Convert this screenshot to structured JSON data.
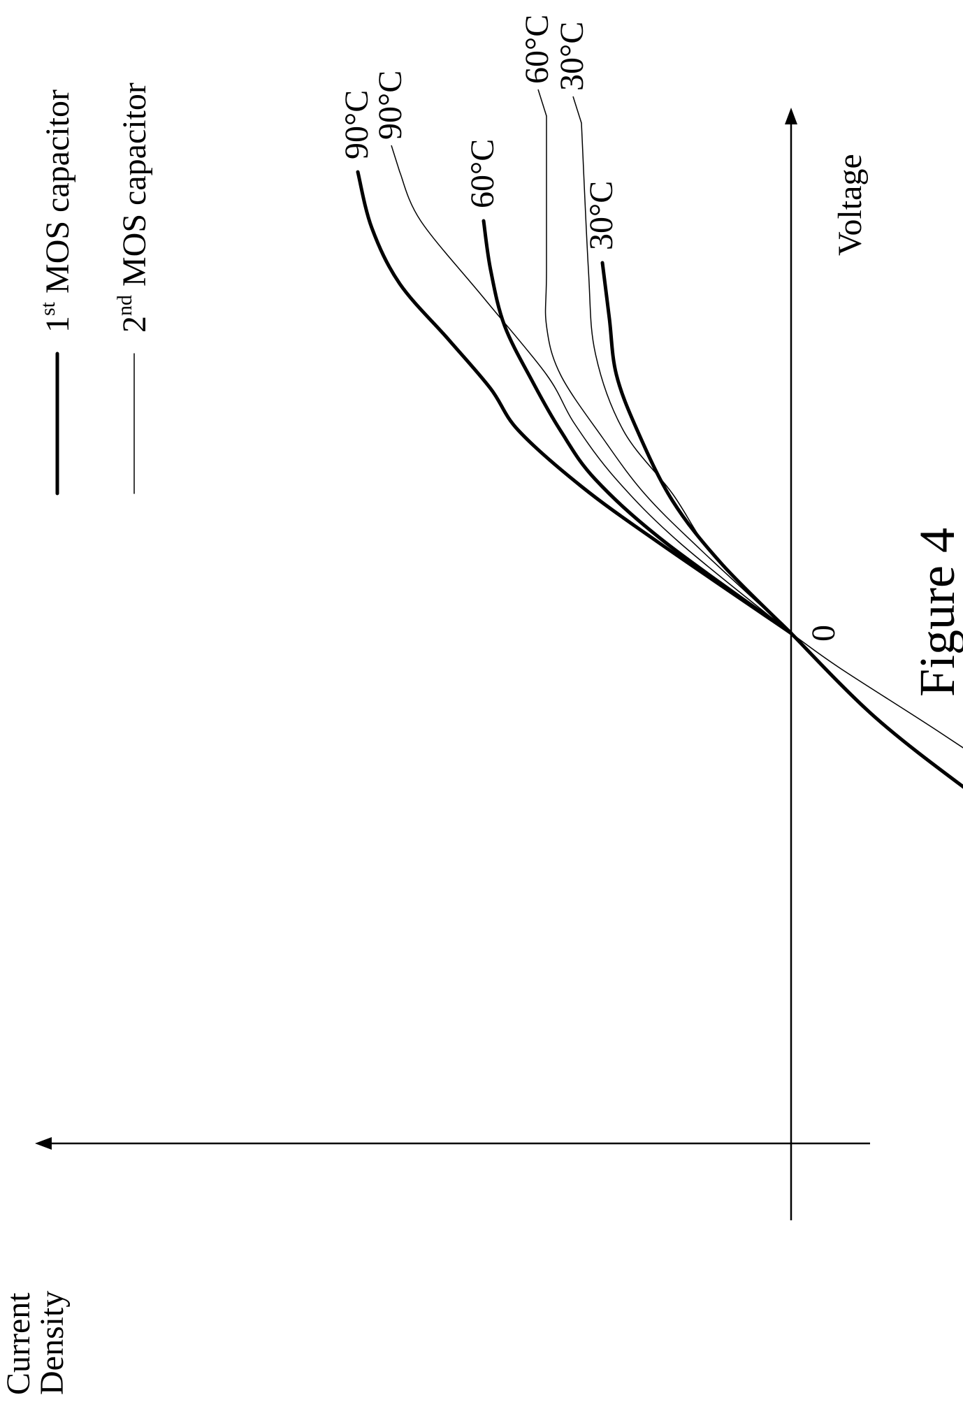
{
  "chart_data": {
    "type": "line",
    "title": "",
    "xlabel": "Voltage",
    "ylabel": "Current Density",
    "origin_tick": "0",
    "caption": "Figure 4",
    "legend": {
      "placement": "top",
      "entries": [
        {
          "base": "1",
          "sup": "st",
          "rest": " MOS capacitor",
          "style": "thick"
        },
        {
          "base": "2",
          "sup": "nd",
          "rest": " MOS capacitor",
          "style": "thin"
        }
      ]
    },
    "series": [
      {
        "name": "1st MOS capacitor",
        "temperature": "90°C",
        "side": "positive",
        "points": [
          [
            0,
            0
          ],
          [
            0.13,
            0.19
          ],
          [
            0.21,
            0.3
          ],
          [
            0.29,
            0.39
          ],
          [
            0.35,
            0.43
          ],
          [
            0.42,
            0.49
          ],
          [
            0.5,
            0.56
          ],
          [
            0.58,
            0.6
          ],
          [
            0.66,
            0.62
          ]
        ]
      },
      {
        "name": "1st MOS capacitor",
        "temperature": "60°C",
        "side": "positive",
        "points": [
          [
            0,
            0
          ],
          [
            0.13,
            0.18
          ],
          [
            0.22,
            0.28
          ],
          [
            0.29,
            0.33
          ],
          [
            0.36,
            0.37
          ],
          [
            0.44,
            0.41
          ],
          [
            0.52,
            0.43
          ],
          [
            0.59,
            0.44
          ]
        ]
      },
      {
        "name": "1st MOS capacitor",
        "temperature": "30°C",
        "side": "positive",
        "points": [
          [
            0,
            0
          ],
          [
            0.1,
            0.1
          ],
          [
            0.19,
            0.17
          ],
          [
            0.29,
            0.22
          ],
          [
            0.37,
            0.25
          ],
          [
            0.45,
            0.26
          ],
          [
            0.53,
            0.27
          ]
        ]
      },
      {
        "name": "2nd MOS capacitor",
        "temperature": "90°C",
        "side": "positive",
        "points": [
          [
            0,
            0
          ],
          [
            0.13,
            0.16
          ],
          [
            0.22,
            0.25
          ],
          [
            0.3,
            0.31
          ],
          [
            0.37,
            0.35
          ],
          [
            0.48,
            0.44
          ],
          [
            0.59,
            0.53
          ],
          [
            0.66,
            0.56
          ]
        ]
      },
      {
        "name": "2nd MOS capacitor",
        "temperature": "60°C",
        "side": "positive",
        "points": [
          [
            0,
            0
          ],
          [
            0.12,
            0.13
          ],
          [
            0.2,
            0.21
          ],
          [
            0.28,
            0.27
          ],
          [
            0.37,
            0.33
          ],
          [
            0.44,
            0.35
          ],
          [
            0.52,
            0.35
          ],
          [
            0.74,
            0.35
          ]
        ]
      },
      {
        "name": "2nd MOS capacitor",
        "temperature": "30°C",
        "side": "positive",
        "points": [
          [
            0,
            0
          ],
          [
            0.11,
            0.11
          ],
          [
            0.2,
            0.17
          ],
          [
            0.29,
            0.24
          ],
          [
            0.4,
            0.28
          ],
          [
            0.52,
            0.29
          ],
          [
            0.73,
            0.3
          ]
        ]
      },
      {
        "name": "1st MOS capacitor",
        "temperature": "",
        "side": "negative",
        "points": [
          [
            0,
            0
          ],
          [
            -0.12,
            -0.12
          ],
          [
            -0.23,
            -0.26
          ],
          [
            -0.33,
            -0.4
          ],
          [
            -0.42,
            -0.54
          ],
          [
            -0.5,
            -0.63
          ],
          [
            -0.57,
            -0.69
          ],
          [
            -0.63,
            -0.79
          ],
          [
            -0.65,
            -0.84
          ]
        ]
      },
      {
        "name": "2nd MOS capacitor",
        "temperature": "",
        "side": "negative",
        "points": [
          [
            0,
            0
          ],
          [
            -0.05,
            -0.07
          ],
          [
            -0.14,
            -0.21
          ],
          [
            -0.24,
            -0.36
          ],
          [
            -0.33,
            -0.49
          ],
          [
            -0.42,
            -0.61
          ],
          [
            -0.51,
            -0.7
          ],
          [
            -0.58,
            -0.77
          ],
          [
            -0.63,
            -0.86
          ]
        ]
      }
    ]
  }
}
